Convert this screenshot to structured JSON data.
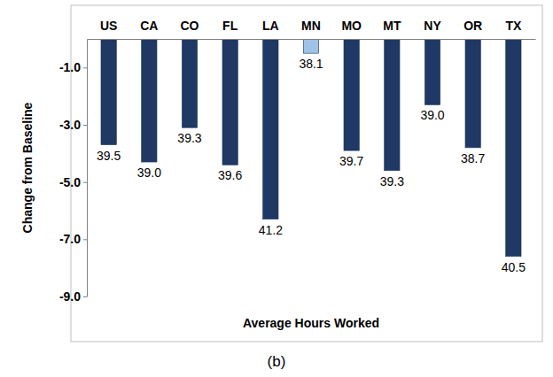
{
  "chart_data": {
    "type": "bar",
    "categories": [
      "US",
      "CA",
      "CO",
      "FL",
      "LA",
      "MN",
      "MO",
      "MT",
      "NY",
      "OR",
      "TX"
    ],
    "values": [
      -3.7,
      -4.3,
      -3.1,
      -4.4,
      -6.3,
      -0.5,
      -3.9,
      -4.6,
      -2.3,
      -3.8,
      -7.6
    ],
    "colors": [
      "#1f3864",
      "#1f3864",
      "#1f3864",
      "#1f3864",
      "#1f3864",
      "#9dc3e6",
      "#1f3864",
      "#1f3864",
      "#1f3864",
      "#1f3864",
      "#1f3864"
    ],
    "hours": [
      39.5,
      39.0,
      39.3,
      39.6,
      41.2,
      38.1,
      39.7,
      39.3,
      39.0,
      38.7,
      40.5
    ],
    "hours_labels": [
      "39.5",
      "39.0",
      "39.3",
      "39.6",
      "41.2",
      "38.1",
      "39.7",
      "39.3",
      "39.0",
      "38.7",
      "40.5"
    ],
    "y_label": "Change from Baseline",
    "x_label": "Average Hours Worked",
    "caption": "(b)",
    "ylim": [
      -9,
      0
    ],
    "yticks": [
      {
        "value": -1,
        "label": "-1.0"
      },
      {
        "value": -3,
        "label": "-3.0"
      },
      {
        "value": -5,
        "label": "-5.0"
      },
      {
        "value": -7,
        "label": "-7.0"
      },
      {
        "value": -9,
        "label": "-9.0"
      }
    ],
    "grid": false
  }
}
